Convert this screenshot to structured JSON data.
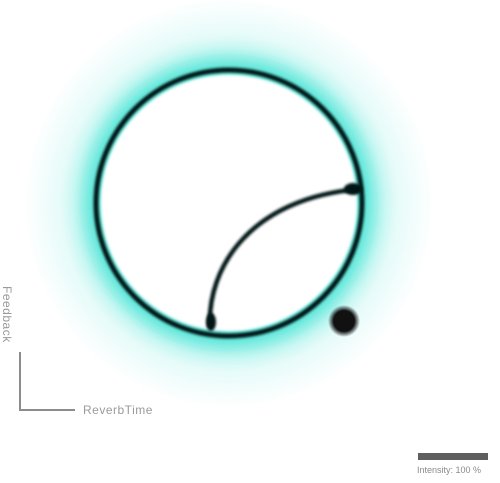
{
  "axes": {
    "x_label": "ReverbTime",
    "y_label": "Feedback"
  },
  "intensity": {
    "label": "Intensity:",
    "value": 100,
    "unit": "%",
    "text": "Intensity: 100 %"
  },
  "colors": {
    "background": "#ffffff",
    "glow": "#2fe0cf",
    "ring": "#031416",
    "marker": "#111111",
    "axis": "#8c8c8c",
    "intensity_bar": "#5f5f5f"
  }
}
